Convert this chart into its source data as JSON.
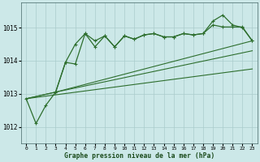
{
  "xlabel": "Graphe pression niveau de la mer (hPa)",
  "background_color": "#cce8e8",
  "grid_color": "#aacccc",
  "line_color": "#2d6e2d",
  "xmin": -0.5,
  "xmax": 23.5,
  "ymin": 1011.5,
  "ymax": 1015.75,
  "yticks": [
    1012,
    1013,
    1014,
    1015
  ],
  "xticks": [
    0,
    1,
    2,
    3,
    4,
    5,
    6,
    7,
    8,
    9,
    10,
    11,
    12,
    13,
    14,
    15,
    16,
    17,
    18,
    19,
    20,
    21,
    22,
    23
  ],
  "line1_x": [
    0,
    1,
    2,
    3,
    4,
    5,
    6,
    7,
    8,
    9,
    10,
    11,
    12,
    13,
    14,
    15,
    16,
    17,
    18,
    19,
    20,
    21,
    22,
    23
  ],
  "line1_y": [
    1012.85,
    1012.1,
    1012.65,
    1013.05,
    1013.95,
    1014.5,
    1014.82,
    1014.6,
    1014.75,
    1014.42,
    1014.75,
    1014.65,
    1014.78,
    1014.82,
    1014.72,
    1014.72,
    1014.82,
    1014.78,
    1014.82,
    1015.08,
    1015.02,
    1015.02,
    1015.02,
    1014.6
  ],
  "line2_x": [
    3,
    4,
    5,
    6,
    7,
    8,
    9,
    10,
    11,
    12,
    13,
    14,
    15,
    16,
    17,
    18,
    19,
    20,
    21,
    22,
    23
  ],
  "line2_y": [
    1013.05,
    1013.95,
    1013.9,
    1014.82,
    1014.42,
    1014.75,
    1014.42,
    1014.75,
    1014.65,
    1014.78,
    1014.82,
    1014.72,
    1014.72,
    1014.82,
    1014.78,
    1014.82,
    1015.2,
    1015.38,
    1015.08,
    1015.0,
    1014.6
  ],
  "line3_x": [
    0,
    3,
    23
  ],
  "line3_y": [
    1012.85,
    1013.05,
    1014.6
  ],
  "line4_x": [
    0,
    3,
    23
  ],
  "line4_y": [
    1012.85,
    1013.05,
    1014.3
  ],
  "line5_x": [
    0,
    23
  ],
  "line5_y": [
    1012.85,
    1013.75
  ]
}
